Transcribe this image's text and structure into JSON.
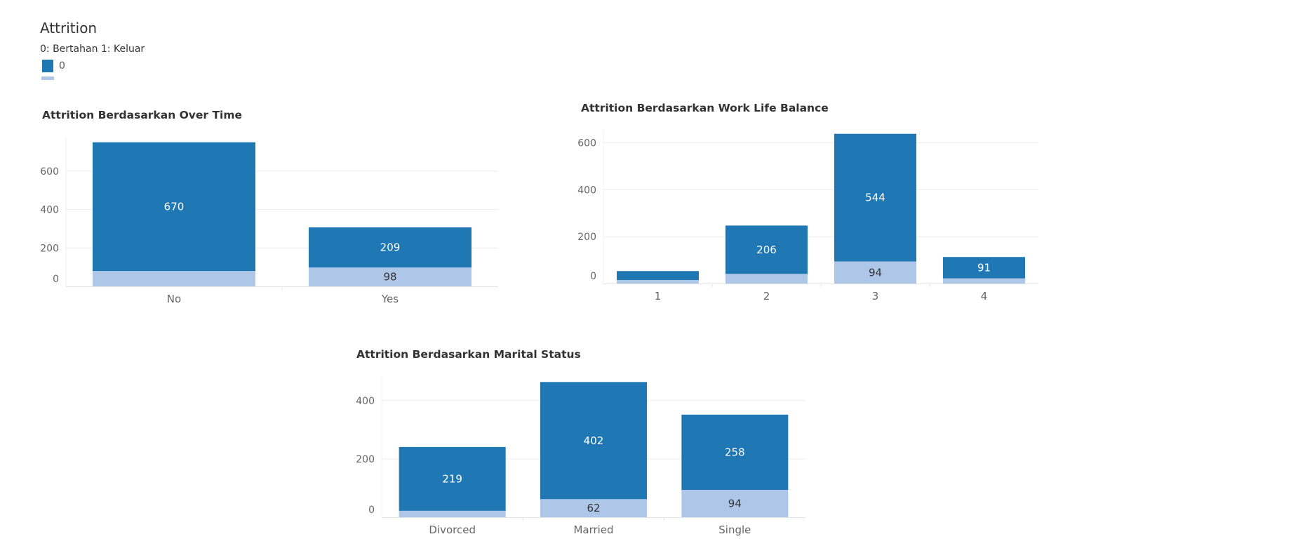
{
  "legend": {
    "title": "Attrition",
    "subtitle": "0: Bertahan 1: Keluar",
    "items": [
      {
        "label": "0",
        "color": "#1f77b4"
      },
      {
        "label": "",
        "color": "#aec7e8"
      }
    ]
  },
  "chart_data": [
    {
      "type": "bar",
      "stacked": true,
      "title": "Attrition Berdasarkan Over Time",
      "categories": [
        "No",
        "Yes"
      ],
      "ylim": [
        0,
        760
      ],
      "yticks": [
        0,
        200,
        400,
        600
      ],
      "grid": true,
      "series": [
        {
          "name": "1",
          "color": "#aec7e8",
          "values": [
            80,
            98
          ],
          "labels": [
            "",
            "98"
          ]
        },
        {
          "name": "0",
          "color": "#1f77b4",
          "values": [
            670,
            209
          ],
          "labels": [
            "670",
            "209"
          ]
        }
      ]
    },
    {
      "type": "bar",
      "stacked": true,
      "title": "Attrition Berdasarkan Work Life Balance",
      "categories": [
        "1",
        "2",
        "3",
        "4"
      ],
      "ylim": [
        0,
        640
      ],
      "yticks": [
        0,
        200,
        400,
        600
      ],
      "grid": true,
      "series": [
        {
          "name": "1",
          "color": "#aec7e8",
          "values": [
            15,
            41,
            94,
            22
          ],
          "labels": [
            "",
            "",
            "94",
            ""
          ]
        },
        {
          "name": "0",
          "color": "#1f77b4",
          "values": [
            38,
            206,
            544,
            91
          ],
          "labels": [
            "",
            "206",
            "544",
            "91"
          ]
        }
      ]
    },
    {
      "type": "bar",
      "stacked": true,
      "title": "Attrition Berdasarkan Marital Status",
      "categories": [
        "Divorced",
        "Married",
        "Single"
      ],
      "ylim": [
        0,
        472
      ],
      "yticks": [
        0,
        200,
        400
      ],
      "grid": true,
      "series": [
        {
          "name": "1",
          "color": "#aec7e8",
          "values": [
            22,
            62,
            94
          ],
          "labels": [
            "",
            "62",
            "94"
          ]
        },
        {
          "name": "0",
          "color": "#1f77b4",
          "values": [
            219,
            402,
            258
          ],
          "labels": [
            "219",
            "402",
            "258"
          ]
        }
      ]
    }
  ]
}
